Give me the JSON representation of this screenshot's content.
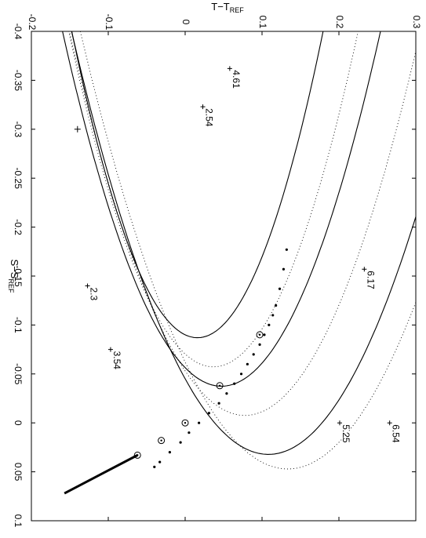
{
  "chart_data": {
    "type": "line",
    "title": "",
    "xlabel": "S−S",
    "xlabel_sub": "REF",
    "ylabel": "T−T",
    "ylabel_sub": "REF",
    "xlim": [
      -0.4,
      0.1
    ],
    "ylim": [
      -0.2,
      0.3
    ],
    "orientation": "rotated-90-clockwise",
    "x_ticks": [
      "-0.4",
      "-0.35",
      "-0.3",
      "-0.25",
      "-0.2",
      "-0.15",
      "-0.1",
      "-0.05",
      "0",
      "0.05",
      "0.1"
    ],
    "y_ticks": [
      "-0.2",
      "-0.1",
      "0",
      "0.1",
      "0.2",
      "0.3"
    ],
    "grid": false,
    "center_marker": {
      "x": -0.3,
      "y": -0.14
    },
    "contours": [
      {
        "style": "solid",
        "level": "2.54",
        "vertex": {
          "x": -0.09,
          "y": 0.0
        },
        "a": 28.6,
        "p": 0.24
      },
      {
        "style": "dotted",
        "level": null,
        "vertex": {
          "x": -0.06,
          "y": 0.02
        },
        "a": 30.0,
        "p": 0.265
      },
      {
        "style": "solid",
        "level": "4.61",
        "vertex": {
          "x": -0.04,
          "y": 0.03
        },
        "a": 31.0,
        "p": 0.285
      },
      {
        "style": "dotted",
        "level": null,
        "vertex": {
          "x": -0.01,
          "y": 0.06
        },
        "a": 32.0,
        "p": 0.305
      },
      {
        "style": "solid",
        "level": "6.17",
        "vertex": {
          "x": 0.03,
          "y": 0.09
        },
        "a": 33.0,
        "p": 0.33
      },
      {
        "style": "dotted",
        "level": null,
        "vertex": {
          "x": 0.045,
          "y": 0.115
        },
        "a": 34.0,
        "p": 0.345
      }
    ],
    "contour_labels": [
      {
        "text": "4.61",
        "x": -0.362,
        "y": 0.058
      },
      {
        "text": "2.54",
        "x": -0.323,
        "y": 0.023
      },
      {
        "text": "2.3",
        "x": -0.14,
        "y": -0.127
      },
      {
        "text": "3.54",
        "x": -0.075,
        "y": -0.097
      },
      {
        "text": "6.17",
        "x": -0.157,
        "y": 0.233
      },
      {
        "text": "5.25",
        "x": 0.0,
        "y": 0.201
      },
      {
        "text": "6.54",
        "x": 0.0,
        "y": 0.266
      }
    ],
    "path_dots": [
      {
        "x": -0.177,
        "y": 0.132
      },
      {
        "x": -0.157,
        "y": 0.128
      },
      {
        "x": -0.137,
        "y": 0.123
      },
      {
        "x": -0.12,
        "y": 0.118
      },
      {
        "x": -0.11,
        "y": 0.114
      },
      {
        "x": -0.1,
        "y": 0.109
      },
      {
        "x": -0.09,
        "y": 0.103
      },
      {
        "x": -0.08,
        "y": 0.097
      },
      {
        "x": -0.07,
        "y": 0.089
      },
      {
        "x": -0.06,
        "y": 0.081
      },
      {
        "x": -0.05,
        "y": 0.073
      },
      {
        "x": -0.04,
        "y": 0.064
      },
      {
        "x": -0.03,
        "y": 0.054
      },
      {
        "x": -0.02,
        "y": 0.044
      },
      {
        "x": -0.01,
        "y": 0.031
      },
      {
        "x": 0.0,
        "y": 0.018
      },
      {
        "x": 0.01,
        "y": 0.005
      },
      {
        "x": 0.02,
        "y": -0.006
      },
      {
        "x": 0.03,
        "y": -0.02
      },
      {
        "x": 0.04,
        "y": -0.033
      },
      {
        "x": 0.045,
        "y": -0.04
      }
    ],
    "circled_points": [
      {
        "x": -0.09,
        "y": 0.097
      },
      {
        "x": -0.038,
        "y": 0.045
      },
      {
        "x": 0.0,
        "y": 0.0
      },
      {
        "x": 0.018,
        "y": -0.031
      },
      {
        "x": 0.033,
        "y": -0.062
      }
    ],
    "heavy_line": {
      "x": [
        0.033,
        0.072
      ],
      "y": [
        -0.062,
        -0.157
      ]
    }
  }
}
